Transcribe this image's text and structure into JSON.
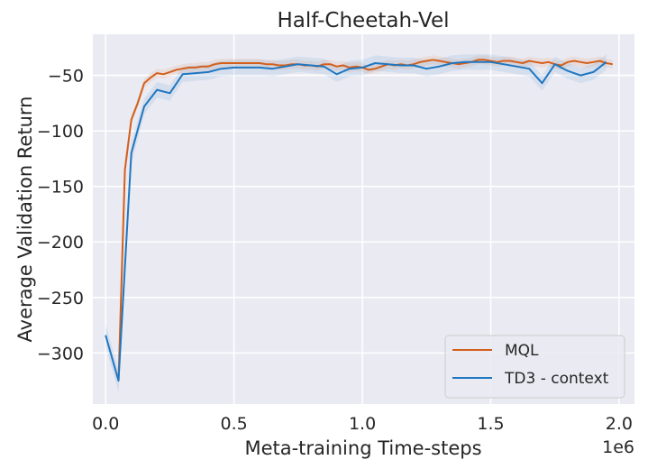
{
  "chart_data": {
    "type": "line",
    "title": "Half-Cheetah-Vel",
    "xlabel": "Meta-training Time-steps",
    "ylabel": "Average Validation Return",
    "x_offset_text": "1e6",
    "xlim": [
      -0.05,
      2.06
    ],
    "ylim": [
      -346,
      -13
    ],
    "xticks": [
      0.0,
      0.5,
      1.0,
      1.5,
      2.0
    ],
    "xtick_labels": [
      "0.0",
      "0.5",
      "1.0",
      "1.5",
      "2.0"
    ],
    "yticks": [
      -300,
      -250,
      -200,
      -150,
      -100,
      -50
    ],
    "ytick_labels": [
      "−300",
      "−250",
      "−200",
      "−150",
      "−100",
      "−50"
    ],
    "grid": true,
    "legend_position": "bottom-right",
    "background": "#EAEAF2",
    "series": [
      {
        "name": "MQL",
        "color": "#D35F1B",
        "x": [
          0.05,
          0.075,
          0.1,
          0.125,
          0.15,
          0.175,
          0.2,
          0.225,
          0.25,
          0.275,
          0.3,
          0.325,
          0.35,
          0.375,
          0.4,
          0.425,
          0.45,
          0.475,
          0.5,
          0.525,
          0.55,
          0.575,
          0.6,
          0.625,
          0.65,
          0.675,
          0.7,
          0.725,
          0.75,
          0.775,
          0.8,
          0.825,
          0.85,
          0.875,
          0.9,
          0.925,
          0.95,
          0.975,
          1.0,
          1.025,
          1.05,
          1.075,
          1.1,
          1.125,
          1.15,
          1.175,
          1.2,
          1.225,
          1.25,
          1.275,
          1.3,
          1.325,
          1.35,
          1.375,
          1.4,
          1.425,
          1.45,
          1.475,
          1.5,
          1.525,
          1.55,
          1.575,
          1.6,
          1.625,
          1.65,
          1.675,
          1.7,
          1.725,
          1.75,
          1.775,
          1.8,
          1.825,
          1.85,
          1.875,
          1.9,
          1.925,
          1.95,
          1.975
        ],
        "y": [
          -325,
          -135,
          -90,
          -75,
          -57,
          -52,
          -48,
          -49,
          -47,
          -45,
          -44,
          -43,
          -43,
          -42,
          -42,
          -40,
          -39,
          -39,
          -39,
          -39,
          -39,
          -39,
          -39,
          -40,
          -40,
          -41,
          -41,
          -40,
          -40,
          -41,
          -41,
          -42,
          -40,
          -40,
          -42,
          -41,
          -43,
          -42,
          -43,
          -45,
          -44,
          -42,
          -40,
          -41,
          -40,
          -41,
          -40,
          -38,
          -37,
          -36,
          -37,
          -38,
          -39,
          -40,
          -39,
          -38,
          -36,
          -36,
          -37,
          -38,
          -37,
          -37,
          -38,
          -39,
          -37,
          -38,
          -39,
          -38,
          -40,
          -41,
          -38,
          -37,
          -38,
          -39,
          -38,
          -37,
          -39,
          -40
        ]
      },
      {
        "name": "TD3 - context",
        "color": "#1F77C1",
        "x": [
          0.0,
          0.05,
          0.1,
          0.15,
          0.2,
          0.25,
          0.3,
          0.35,
          0.4,
          0.45,
          0.5,
          0.55,
          0.6,
          0.65,
          0.7,
          0.75,
          0.8,
          0.85,
          0.9,
          0.95,
          1.0,
          1.05,
          1.1,
          1.15,
          1.2,
          1.25,
          1.3,
          1.35,
          1.4,
          1.45,
          1.5,
          1.55,
          1.6,
          1.65,
          1.7,
          1.75,
          1.8,
          1.85,
          1.9,
          1.95
        ],
        "y": [
          -284,
          -325,
          -120,
          -78,
          -63,
          -66,
          -49,
          -48,
          -47,
          -44,
          -43,
          -43,
          -43,
          -44,
          -42,
          -40,
          -41,
          -42,
          -49,
          -44,
          -43,
          -39,
          -40,
          -41,
          -41,
          -44,
          -42,
          -39,
          -38,
          -38,
          -38,
          -40,
          -42,
          -44,
          -57,
          -40,
          -46,
          -50,
          -47,
          -38
        ]
      }
    ]
  }
}
